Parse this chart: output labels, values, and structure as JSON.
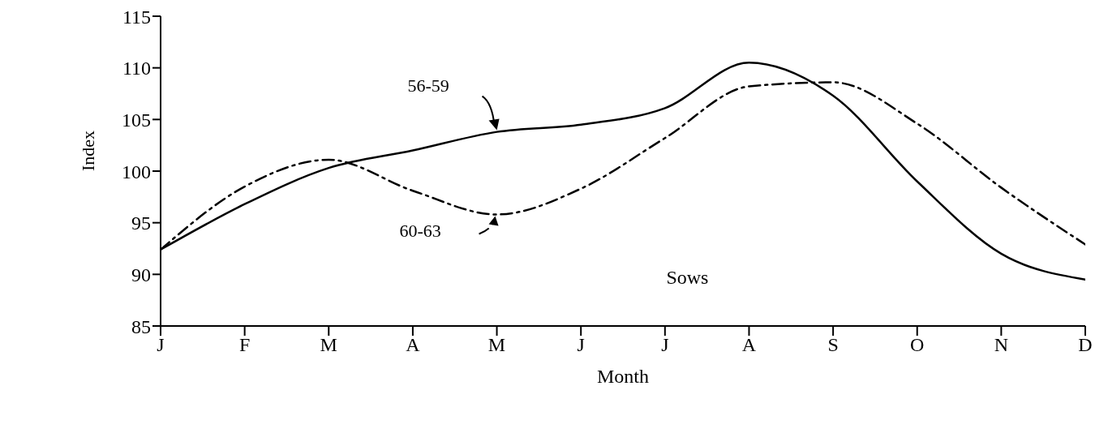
{
  "chart_data": {
    "type": "line",
    "xlabel": "Month",
    "ylabel": "Index",
    "categories": [
      "J",
      "F",
      "M",
      "A",
      "M",
      "J",
      "J",
      "A",
      "S",
      "O",
      "N",
      "D"
    ],
    "ylim": [
      85,
      115
    ],
    "yticks": [
      85,
      90,
      95,
      100,
      105,
      110,
      115
    ],
    "marker": "none",
    "annotations": [
      "Sows"
    ],
    "series": [
      {
        "name": "56-59",
        "color": "#000000",
        "line_style": "solid",
        "values": [
          92.4,
          96.8,
          100.3,
          102.0,
          103.8,
          104.5,
          106.1,
          110.5,
          107.3,
          99.0,
          92.0,
          89.5
        ]
      },
      {
        "name": "60-63",
        "color": "#000000",
        "line_style": "dashed",
        "values": [
          92.4,
          98.5,
          101.1,
          98.1,
          95.8,
          98.3,
          103.2,
          108.2,
          108.6,
          104.6,
          98.4,
          92.9
        ]
      }
    ]
  }
}
